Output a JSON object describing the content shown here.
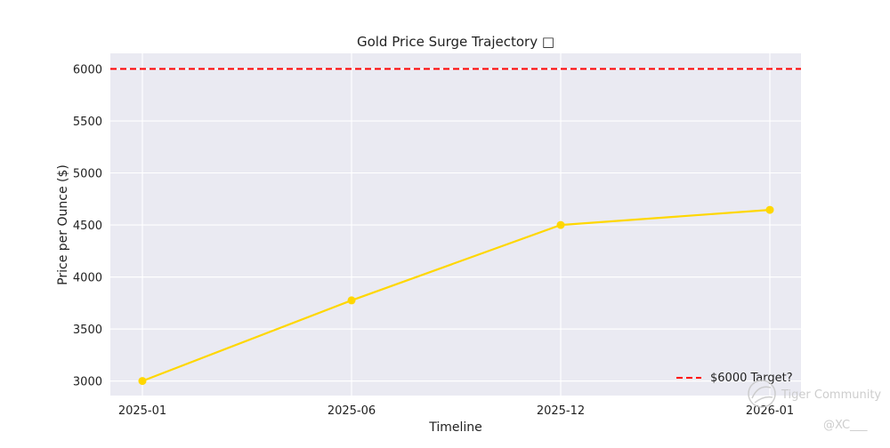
{
  "chart_data": {
    "type": "line",
    "title": "Gold Price Surge Trajectory □",
    "xlabel": "Timeline",
    "ylabel": "Price per Ounce ($)",
    "categories": [
      "2025-01",
      "2025-06",
      "2025-12",
      "2026-01"
    ],
    "series": [
      {
        "values": [
          3000,
          3775,
          4500,
          4645
        ],
        "color": "#FFD700"
      }
    ],
    "reference_lines": [
      {
        "name": "$6000 Target?",
        "value": 6000,
        "color": "#FF0000",
        "style": "dashed"
      }
    ],
    "yticks": [
      3000,
      3500,
      4000,
      4500,
      5000,
      5500,
      6000
    ],
    "ylim": [
      2860,
      6150
    ],
    "grid": true,
    "legend_position": "lower-right"
  },
  "watermark": {
    "brand": "Tiger Community",
    "handle": "@XC___"
  },
  "colors": {
    "plot_background": "#EAEAF2",
    "grid": "#FFFFFF",
    "text": "#222222",
    "watermark": "#C8C8C8"
  }
}
